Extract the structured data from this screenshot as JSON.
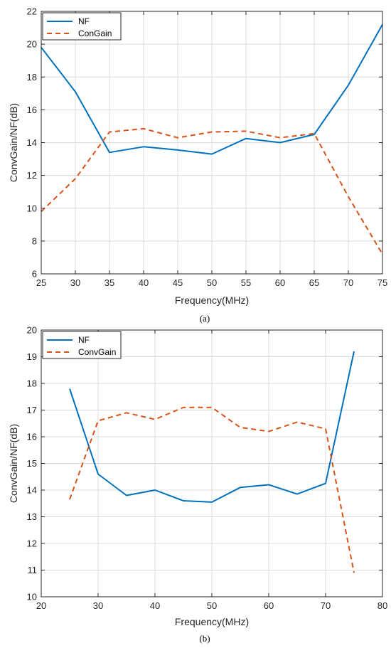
{
  "chart_data": [
    {
      "type": "line",
      "caption": "(a)",
      "xlabel": "Frequency(MHz)",
      "ylabel": "ConvGain/NF(dB)",
      "xlim": [
        25,
        75
      ],
      "ylim": [
        6,
        22
      ],
      "xticks": [
        25,
        30,
        35,
        40,
        45,
        50,
        55,
        60,
        65,
        70,
        75
      ],
      "yticks": [
        6,
        8,
        10,
        12,
        14,
        16,
        18,
        20,
        22
      ],
      "grid": true,
      "legend_position": "top-left",
      "series": [
        {
          "name": "NF",
          "color": "#0072BD",
          "dash": "solid",
          "x": [
            25,
            30,
            35,
            40,
            45,
            50,
            55,
            60,
            65,
            70,
            75
          ],
          "y": [
            19.8,
            17.1,
            13.4,
            13.75,
            13.55,
            13.3,
            14.25,
            14.0,
            14.5,
            17.5,
            21.2
          ]
        },
        {
          "name": "ConGain",
          "color": "#D95319",
          "dash": "dashed",
          "x": [
            25,
            30,
            35,
            40,
            45,
            50,
            55,
            60,
            65,
            70,
            75
          ],
          "y": [
            9.8,
            11.8,
            14.65,
            14.85,
            14.3,
            14.65,
            14.7,
            14.3,
            14.55,
            10.7,
            7.2
          ]
        }
      ]
    },
    {
      "type": "line",
      "caption": "(b)",
      "xlabel": "Frequency(MHz)",
      "ylabel": "ConvGain/NF(dB)",
      "xlim": [
        20,
        80
      ],
      "ylim": [
        10,
        20
      ],
      "xticks": [
        20,
        30,
        40,
        50,
        60,
        70,
        80
      ],
      "yticks": [
        10,
        11,
        12,
        13,
        14,
        15,
        16,
        17,
        18,
        19,
        20
      ],
      "grid": true,
      "legend_position": "top-left",
      "series": [
        {
          "name": "NF",
          "color": "#0072BD",
          "dash": "solid",
          "x": [
            25,
            30,
            35,
            40,
            45,
            50,
            55,
            60,
            65,
            70,
            75
          ],
          "y": [
            17.8,
            14.6,
            13.8,
            14.0,
            13.6,
            13.55,
            14.1,
            14.2,
            13.85,
            14.25,
            19.2
          ]
        },
        {
          "name": "ConvGain",
          "color": "#D95319",
          "dash": "dashed",
          "x": [
            25,
            30,
            35,
            40,
            45,
            50,
            55,
            60,
            65,
            70,
            75
          ],
          "y": [
            13.65,
            16.6,
            16.9,
            16.65,
            17.1,
            17.1,
            16.35,
            16.2,
            16.55,
            16.3,
            10.9
          ]
        }
      ]
    }
  ]
}
